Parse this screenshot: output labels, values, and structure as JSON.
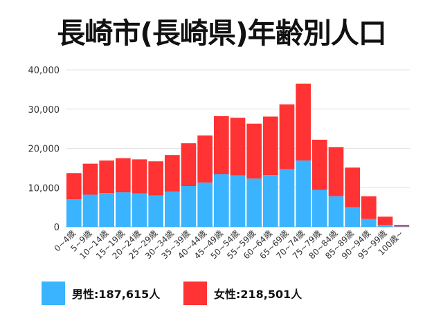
{
  "title": "長崎市(長崎県)年齢別人口",
  "legend": [
    {
      "label": "男性:187,615人",
      "color": "#3ab4ff"
    },
    {
      "label": "女性:218,501人",
      "color": "#ff3333"
    }
  ],
  "chart_data": {
    "type": "bar",
    "stacked": true,
    "categories": [
      "0~4歳",
      "5~9歳",
      "10~14歳",
      "15~19歳",
      "20~24歳",
      "25~29歳",
      "30~34歳",
      "35~39歳",
      "40~44歳",
      "45~49歳",
      "50~54歳",
      "55~59歳",
      "60~64歳",
      "65~69歳",
      "70~74歳",
      "75~79歳",
      "80~84歳",
      "85~89歳",
      "90~94歳",
      "95~99歳",
      "100歳~"
    ],
    "series": [
      {
        "name": "男性",
        "color": "#3ab4ff",
        "values": [
          7000,
          8200,
          8600,
          8800,
          8500,
          8000,
          9000,
          10400,
          11300,
          13400,
          13100,
          12300,
          13200,
          14700,
          16900,
          9400,
          7800,
          5000,
          2000,
          500,
          100
        ]
      },
      {
        "name": "女性",
        "color": "#ff3333",
        "values": [
          6700,
          7900,
          8300,
          8700,
          8700,
          8700,
          9300,
          10900,
          12000,
          14800,
          14700,
          14000,
          14900,
          16500,
          19600,
          12800,
          12500,
          10100,
          5800,
          2100,
          400
        ]
      }
    ],
    "y_ticks": [
      "0",
      "10,000",
      "20,000",
      "30,000",
      "40,000"
    ],
    "ylim": [
      0,
      40000
    ],
    "grid": true,
    "legend_position": "bottom"
  }
}
